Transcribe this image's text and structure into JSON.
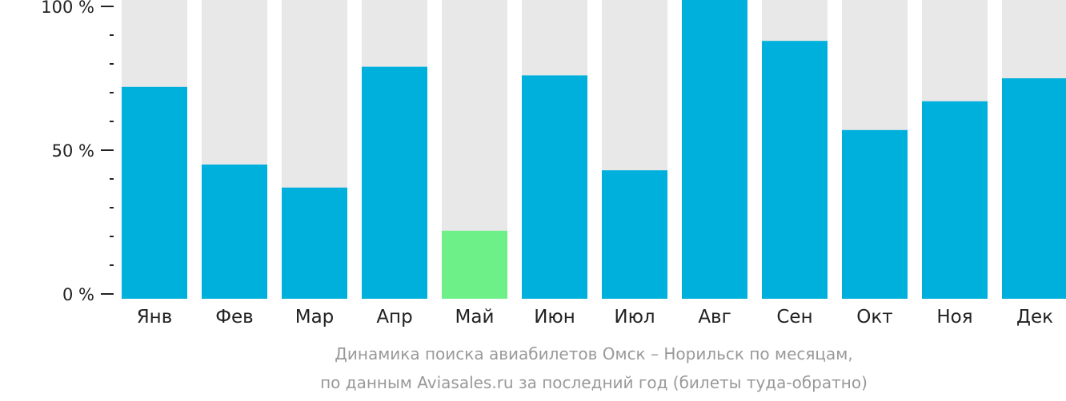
{
  "chart_data": {
    "type": "bar",
    "categories": [
      "Янв",
      "Фев",
      "Мар",
      "Апр",
      "Май",
      "Июн",
      "Июл",
      "Авг",
      "Сен",
      "Окт",
      "Ноя",
      "Дек"
    ],
    "values": [
      72,
      45,
      37,
      79,
      22,
      76,
      43,
      100,
      88,
      57,
      67,
      75
    ],
    "ylim": [
      0,
      100
    ],
    "yticks": [
      "0 %",
      "50 %",
      "100 %"
    ],
    "highlight_index": 4,
    "colors": {
      "bar": "#00b0dc",
      "highlight": "#6ef089",
      "background_bar": "#e8e8e8",
      "axis": "#222222"
    },
    "caption": [
      "Динамика поиска авиабилетов Омск – Норильск по месяцам,",
      "по данным Aviasales.ru за последний год (билеты туда-обратно)"
    ]
  }
}
